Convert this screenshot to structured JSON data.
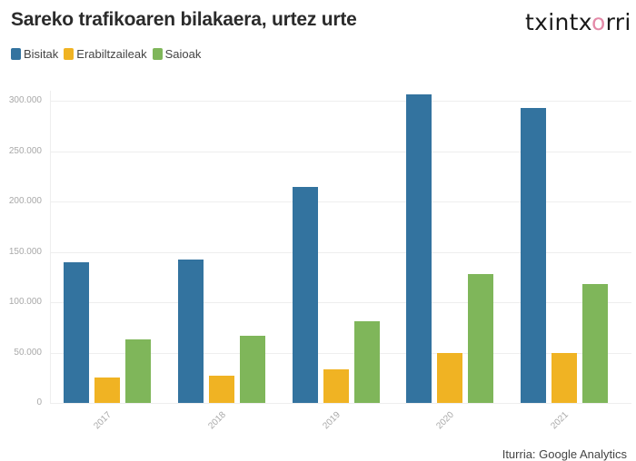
{
  "header": {
    "title": "Sareko trafikoaren bilakaera, urtez urte",
    "logo_main": "txintx",
    "logo_accent": "o",
    "logo_tail": "rri"
  },
  "legend": [
    {
      "label": "Bisitak",
      "color": "#33739f"
    },
    {
      "label": "Erabiltzaileak",
      "color": "#f0b323"
    },
    {
      "label": "Saioak",
      "color": "#7fb65a"
    }
  ],
  "y_axis": {
    "ticks": [
      "0",
      "50.000",
      "100.000",
      "150.000",
      "200.000",
      "250.000",
      "300.000"
    ]
  },
  "footer": {
    "source": "Iturria: Google Analytics"
  },
  "chart_data": {
    "type": "bar",
    "title": "Sareko trafikoaren bilakaera, urtez urte",
    "xlabel": "",
    "ylabel": "",
    "categories": [
      "2017",
      "2018",
      "2019",
      "2020",
      "2021"
    ],
    "series": [
      {
        "name": "Bisitak",
        "color": "#33739f",
        "values": [
          140000,
          142000,
          214000,
          306000,
          293000
        ]
      },
      {
        "name": "Erabiltzaileak",
        "color": "#f0b323",
        "values": [
          25000,
          27000,
          33000,
          50000,
          50000
        ]
      },
      {
        "name": "Saioak",
        "color": "#7fb65a",
        "values": [
          63000,
          67000,
          81000,
          128000,
          118000
        ]
      }
    ],
    "ylim": [
      0,
      300000
    ],
    "yticks": [
      0,
      50000,
      100000,
      150000,
      200000,
      250000,
      300000
    ],
    "grid": true,
    "legend_position": "top-left",
    "source": "Iturria: Google Analytics"
  }
}
